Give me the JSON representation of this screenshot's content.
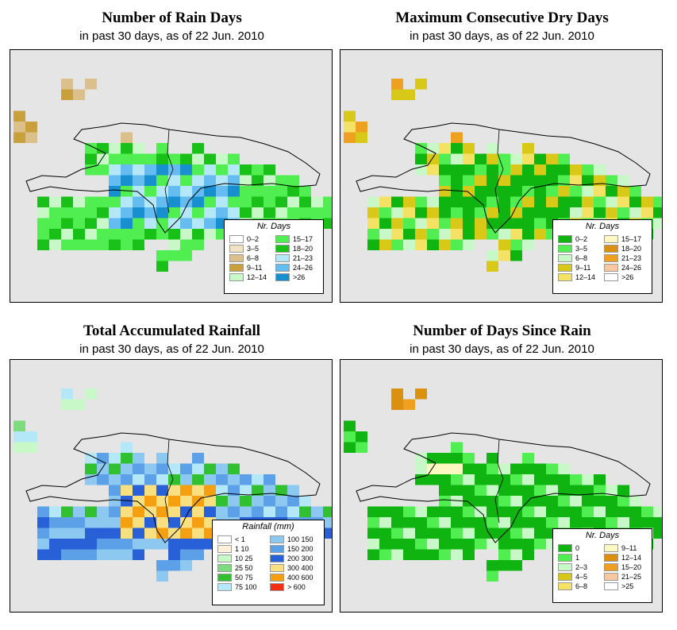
{
  "panels": [
    {
      "id": "rain-days",
      "title": "Number of Rain Days",
      "subtitle": "in past 30 days, as of  22 Jun. 2010",
      "legend_title": "Nr. Days",
      "legend": [
        {
          "label": "0–2",
          "color": "#ffffff"
        },
        {
          "label": "3–5",
          "color": "#f2e2c4"
        },
        {
          "label": "6–8",
          "color": "#dcc08c"
        },
        {
          "label": "9–11",
          "color": "#c8a03c"
        },
        {
          "label": "12–14",
          "color": "#c8f8c8"
        },
        {
          "label": "15–17",
          "color": "#50ee50"
        },
        {
          "label": "18–20",
          "color": "#18c018"
        },
        {
          "label": "21–23",
          "color": "#b4e8f8"
        },
        {
          "label": "24–26",
          "color": "#64bcf0"
        },
        {
          "label": ">26",
          "color": "#1890d0"
        }
      ]
    },
    {
      "id": "max-dry-days",
      "title": "Maximum Consecutive Dry Days",
      "subtitle": "in past 30 days, as of  22 Jun. 2010",
      "legend_title": "Nr. Days",
      "legend": [
        {
          "label": "0–2",
          "color": "#10b410"
        },
        {
          "label": "3–5",
          "color": "#50ee50"
        },
        {
          "label": "6–8",
          "color": "#c8f8c8"
        },
        {
          "label": "9–11",
          "color": "#d8c818"
        },
        {
          "label": "12–14",
          "color": "#f4e264"
        },
        {
          "label": "15–17",
          "color": "#fcf8c0"
        },
        {
          "label": "18–20",
          "color": "#dc9010"
        },
        {
          "label": "21–23",
          "color": "#f0a020"
        },
        {
          "label": "24–26",
          "color": "#f8c8a0"
        },
        {
          "label": ">26",
          "color": "#ffffff"
        }
      ]
    },
    {
      "id": "total-rainfall",
      "title": "Total Accumulated Rainfall",
      "subtitle": "in past 30 days, as of  22 Jun. 2010",
      "legend_title": "Rainfall (mm)",
      "legend": [
        {
          "label": "< 1",
          "color": "#ffffff"
        },
        {
          "label": "1   10",
          "color": "#fcf0d8"
        },
        {
          "label": "10   25",
          "color": "#c8f8c8"
        },
        {
          "label": "25   50",
          "color": "#7cdc7c"
        },
        {
          "label": "50   75",
          "color": "#30c030"
        },
        {
          "label": "75   100",
          "color": "#b4e8f8"
        },
        {
          "label": "100   150",
          "color": "#8cc8f0"
        },
        {
          "label": "150   200",
          "color": "#5ca0e8"
        },
        {
          "label": "200   300",
          "color": "#2860d8"
        },
        {
          "label": "300   400",
          "color": "#f8e080"
        },
        {
          "label": "400   600",
          "color": "#f4a010"
        },
        {
          "label": "> 600",
          "color": "#f03010"
        }
      ]
    },
    {
      "id": "days-since-rain",
      "title": "Number of Days Since Rain",
      "subtitle": "in past 30 days, as of  22 Jun. 2010",
      "legend_title": "Nr. Days",
      "legend": [
        {
          "label": "0",
          "color": "#10b410"
        },
        {
          "label": "1",
          "color": "#50ee50"
        },
        {
          "label": "2–3",
          "color": "#c8f8c8"
        },
        {
          "label": "4–5",
          "color": "#d8c818"
        },
        {
          "label": "6–8",
          "color": "#f4e264"
        },
        {
          "label": "9–11",
          "color": "#fcf8c0"
        },
        {
          "label": "12–14",
          "color": "#dc9010"
        },
        {
          "label": "15–20",
          "color": "#f0a020"
        },
        {
          "label": "21–25",
          "color": "#f8c8a0"
        },
        {
          "label": ">25",
          "color": "#ffffff"
        }
      ]
    }
  ]
}
